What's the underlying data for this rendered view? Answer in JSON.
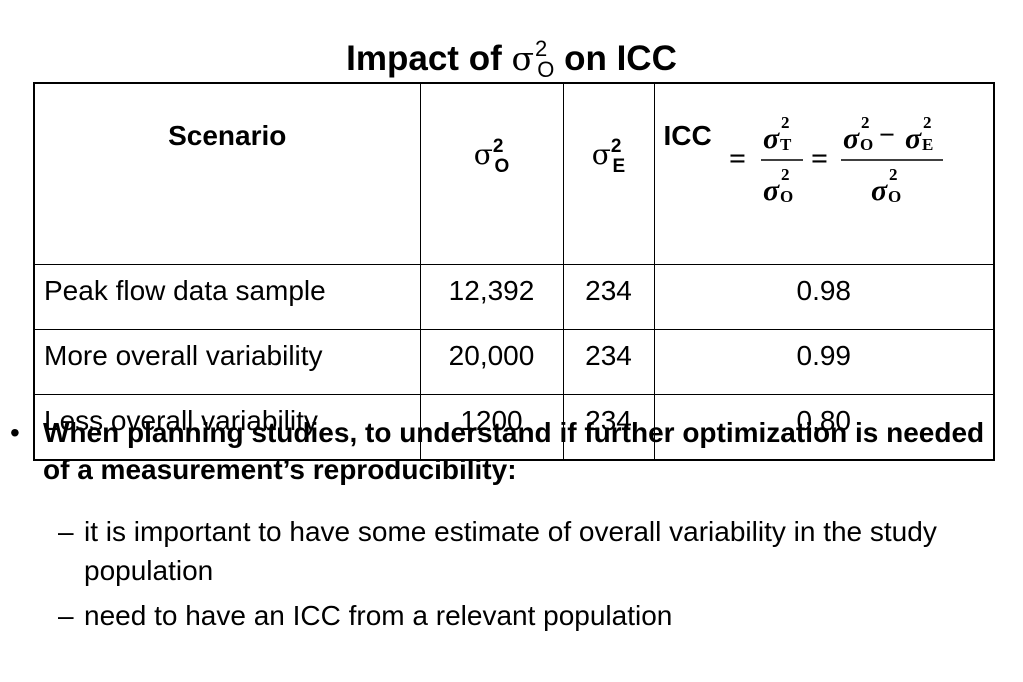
{
  "title": {
    "prefix": "Impact of ",
    "sigma": "σ",
    "sup": "2",
    "sub": "O",
    "suffix": " on ICC"
  },
  "table": {
    "headers": {
      "scenario": "Scenario",
      "sigma_o": {
        "base": "σ",
        "sup": "2",
        "sub": "O"
      },
      "sigma_e": {
        "base": "σ",
        "sup": "2",
        "sub": "E"
      },
      "icc": "ICC"
    },
    "formula": {
      "eq": "=",
      "sigma": "σ",
      "sq": "2",
      "t": "T",
      "o": "O",
      "e": "E",
      "minus": "−"
    },
    "rows": [
      {
        "scenario": "Peak flow data sample",
        "sigma_o": "12,392",
        "sigma_e": "234",
        "icc": "0.98"
      },
      {
        "scenario": "More overall variability",
        "sigma_o": "20,000",
        "sigma_e": "234",
        "icc": "0.99"
      },
      {
        "scenario": "Less overall variability",
        "sigma_o": "1200",
        "sigma_e": "234",
        "icc": "0.80"
      }
    ]
  },
  "bullets": {
    "main": {
      "marker": "•",
      "text": "When planning studies, to understand if further optimization is needed of a measurement’s reproducibility:"
    },
    "subs": [
      {
        "marker": "–",
        "text": "it is important to have some estimate of overall variability in the study population"
      },
      {
        "marker": "–",
        "text": "need to have an ICC from a relevant population"
      }
    ]
  }
}
